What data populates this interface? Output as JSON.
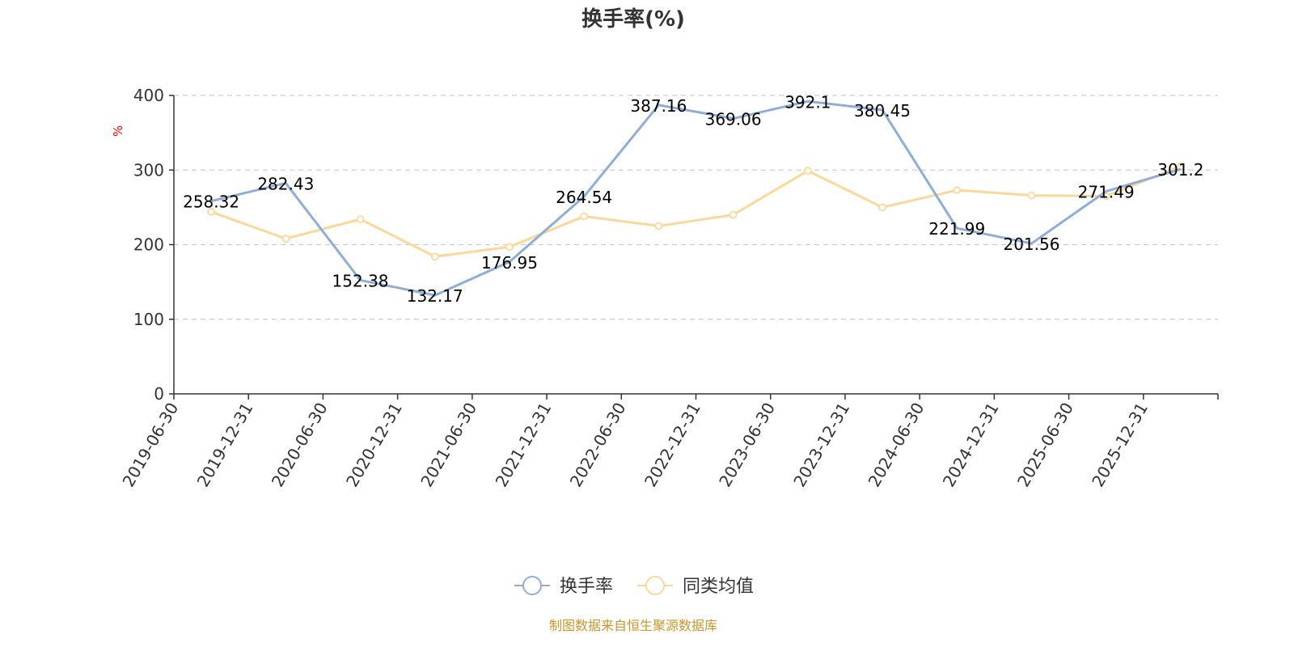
{
  "chart_data": {
    "type": "line",
    "title": "换手率(%)",
    "ylabel": "%",
    "xlabel": "",
    "ylim": [
      0,
      400
    ],
    "yticks": [
      0,
      100,
      200,
      300,
      400
    ],
    "grid": true,
    "legend_position": "bottom-center",
    "categories": [
      "2019-06-30",
      "2019-12-31",
      "2020-06-30",
      "2020-12-31",
      "2021-06-30",
      "2021-12-31",
      "2022-06-30",
      "2022-12-31",
      "2023-06-30",
      "2023-12-31",
      "2024-06-30",
      "2024-12-31",
      "2025-06-30",
      "2025-12-31"
    ],
    "series": [
      {
        "name": "换手率",
        "color": "#8eaed8",
        "values": [
          258.32,
          282.43,
          152.38,
          132.17,
          176.95,
          264.54,
          387.16,
          369.06,
          392.1,
          380.45,
          221.99,
          201.56,
          271.49,
          301.2
        ],
        "labels": [
          "258.32",
          "282.43",
          "152.38",
          "132.17",
          "176.95",
          "264.54",
          "387.16",
          "369.06",
          "392.1",
          "380.45",
          "221.99",
          "201.56",
          "271.49",
          "301.2"
        ]
      },
      {
        "name": "同类均值",
        "color": "#fbd89a",
        "values": [
          244,
          208,
          234,
          184,
          197,
          238,
          225,
          240,
          299,
          250,
          273,
          266,
          265,
          305
        ]
      }
    ]
  },
  "source": "制图数据来自恒生聚源数据库"
}
